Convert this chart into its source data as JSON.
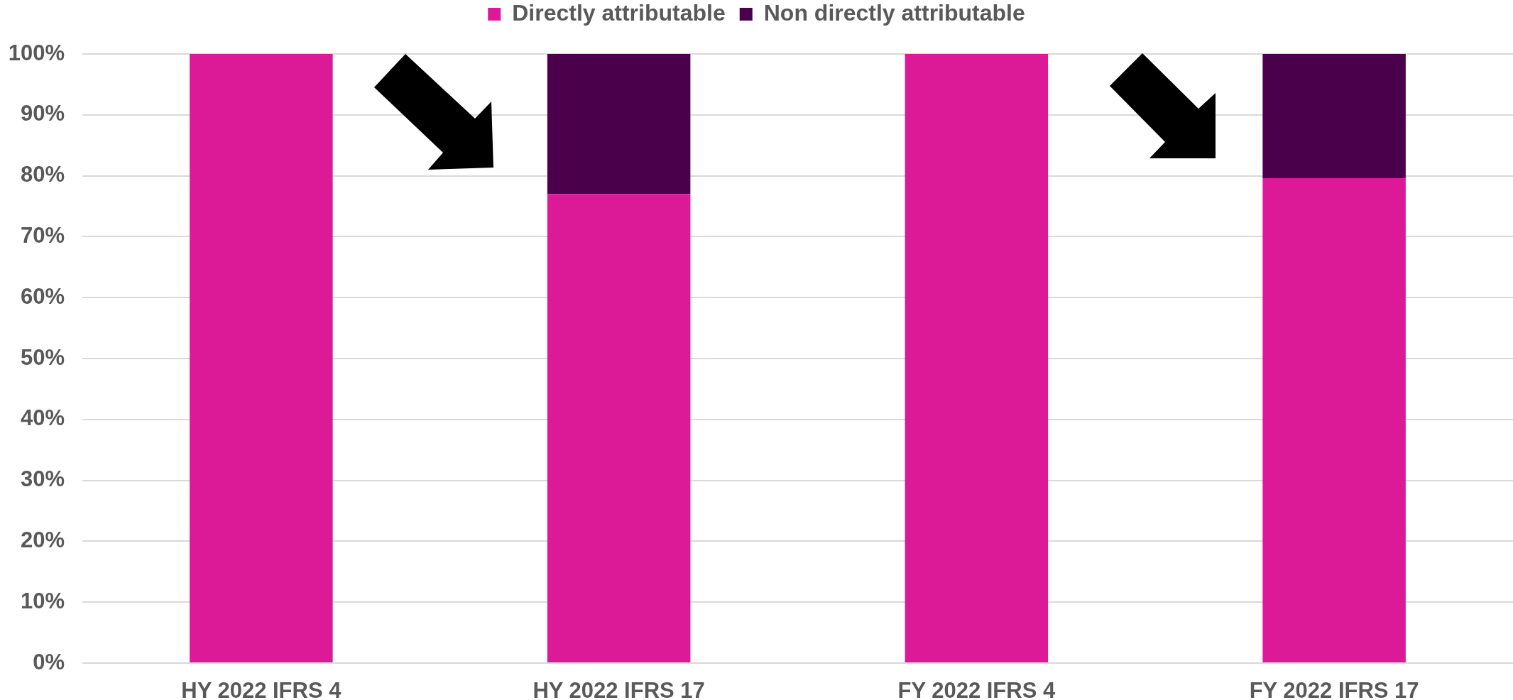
{
  "chart_data": {
    "type": "bar",
    "stacked": true,
    "categories": [
      "HY 2022 IFRS 4",
      "HY 2022 IFRS 17",
      "FY 2022 IFRS 4",
      "FY 2022 IFRS 17"
    ],
    "series": [
      {
        "name": "Directly attributable",
        "color": "#dc1a98",
        "values": [
          100,
          77,
          100,
          79.6
        ]
      },
      {
        "name": "Non directly attributable",
        "color": "#4b004b",
        "values": [
          0,
          23,
          0,
          20.4
        ]
      }
    ],
    "ylim": [
      0,
      100
    ],
    "yticks": [
      {
        "value": 0,
        "label": "0%"
      },
      {
        "value": 10,
        "label": "10%"
      },
      {
        "value": 20,
        "label": "20%"
      },
      {
        "value": 30,
        "label": "30%"
      },
      {
        "value": 40,
        "label": "40%"
      },
      {
        "value": 50,
        "label": "50%"
      },
      {
        "value": 60,
        "label": "60%"
      },
      {
        "value": 70,
        "label": "70%"
      },
      {
        "value": 80,
        "label": "80%"
      },
      {
        "value": 90,
        "label": "90%"
      },
      {
        "value": 100,
        "label": "100%"
      }
    ],
    "grid": "y",
    "legend": "top"
  }
}
